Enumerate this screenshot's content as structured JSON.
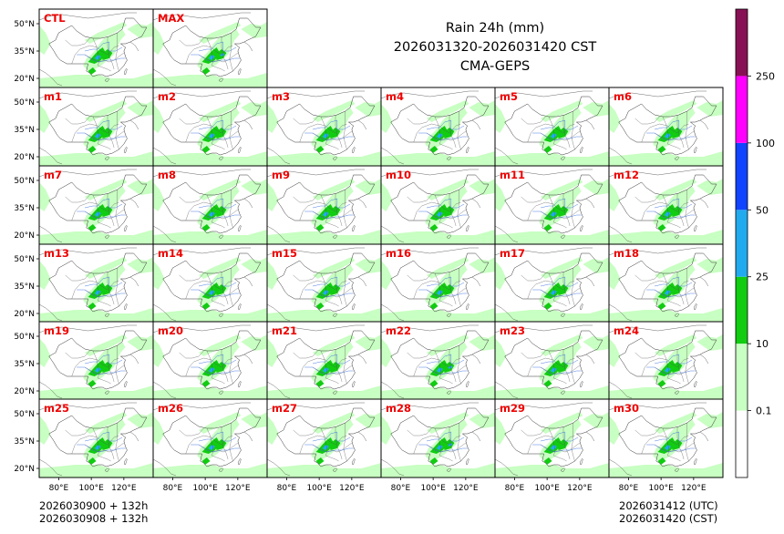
{
  "title": {
    "line1": "Rain 24h (mm)",
    "line2": "2026031320-2026031420 CST",
    "line3": "CMA-GEPS"
  },
  "footer": {
    "left_line1": "2026030900 + 132h",
    "left_line2": "2026030908 + 132h",
    "right_line1": "2026031412 (UTC)",
    "right_line2": "2026031420 (CST)"
  },
  "axes": {
    "y_ticks": [
      "50°N",
      "35°N",
      "20°N"
    ],
    "x_ticks": [
      "80°E",
      "100°E",
      "120°E"
    ]
  },
  "colorbar": {
    "bounds": [
      0,
      0.1,
      10,
      25,
      50,
      100,
      250
    ],
    "tick_labels": [
      "0.1",
      "10",
      "25",
      "50",
      "100",
      "250"
    ],
    "colors": [
      "#ffffff",
      "#c8ffc2",
      "#11cc11",
      "#22aaee",
      "#1144ff",
      "#ff00ff",
      "#881155"
    ]
  },
  "chart_data": {
    "type": "heatmap",
    "title": "Rain 24h (mm)",
    "variable": "24-hour accumulated rainfall",
    "units": "mm",
    "valid_period": "2026031320-2026031420 CST",
    "model": "CMA-GEPS",
    "initial_time": "2026030900 + 132h",
    "xlabel": "",
    "ylabel": "",
    "x_ticks": [
      "80°E",
      "100°E",
      "120°E"
    ],
    "y_ticks": [
      "50°N",
      "35°N",
      "20°N"
    ],
    "levels": [
      0.1,
      10,
      25,
      50,
      100,
      250
    ],
    "panels": [
      "CTL",
      "MAX",
      "m1",
      "m2",
      "m3",
      "m4",
      "m5",
      "m6",
      "m7",
      "m8",
      "m9",
      "m10",
      "m11",
      "m12",
      "m13",
      "m14",
      "m15",
      "m16",
      "m17",
      "m18",
      "m19",
      "m20",
      "m21",
      "m22",
      "m23",
      "m24",
      "m25",
      "m26",
      "m27",
      "m28",
      "m29",
      "m30"
    ]
  },
  "colors": {
    "panel_label": "#ee0000",
    "rain_light": "#c8ffc2",
    "rain_moderate": "#11cc11",
    "rain_heavy": "#22aaee"
  }
}
